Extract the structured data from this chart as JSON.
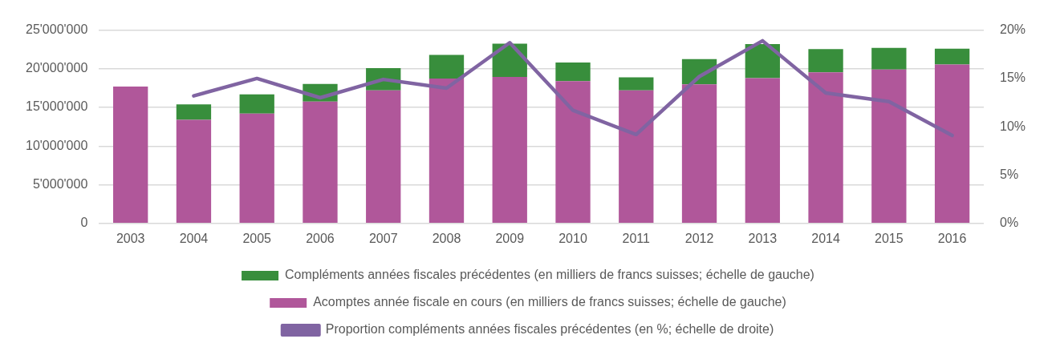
{
  "chart_data": {
    "type": "bar",
    "stacked": true,
    "categories": [
      "2003",
      "2004",
      "2005",
      "2006",
      "2007",
      "2008",
      "2009",
      "2010",
      "2011",
      "2012",
      "2013",
      "2014",
      "2015",
      "2016"
    ],
    "series": [
      {
        "name": "Acomptes année fiscale en cours (en milliers de francs suisses; échelle de gauche)",
        "color": "#b0579a",
        "values": [
          17700000,
          13400000,
          14200000,
          15750000,
          17200000,
          18750000,
          18950000,
          18400000,
          17200000,
          18000000,
          18800000,
          19550000,
          19900000,
          20550000
        ]
      },
      {
        "name": "Compléments années fiscales précédentes (en milliers de francs suisses; échelle de gauche)",
        "color": "#388e3c",
        "values": [
          0,
          2000000,
          2500000,
          2300000,
          2900000,
          3050000,
          4300000,
          2400000,
          1700000,
          3250000,
          4400000,
          3000000,
          2800000,
          2050000
        ]
      },
      {
        "name": "Proportion compléments années fiscales précédentes (en %; échelle de droite)",
        "type": "line",
        "axis": "y2",
        "color": "#8064a2",
        "values": [
          null,
          13.2,
          15.0,
          13.0,
          14.9,
          14.0,
          18.7,
          11.7,
          9.2,
          15.2,
          18.9,
          13.5,
          12.6,
          9.1
        ]
      }
    ],
    "ylim": [
      0,
      25000000
    ],
    "yticks": [
      {
        "value": 0,
        "label": "0"
      },
      {
        "value": 5000000,
        "label": "5'000'000"
      },
      {
        "value": 10000000,
        "label": "10'000'000"
      },
      {
        "value": 15000000,
        "label": "15'000'000"
      },
      {
        "value": 20000000,
        "label": "20'000'000"
      },
      {
        "value": 25000000,
        "label": "25'000'000"
      }
    ],
    "y2lim": [
      0,
      20
    ],
    "y2ticks": [
      {
        "value": 0,
        "label": "0%"
      },
      {
        "value": 5,
        "label": "5%"
      },
      {
        "value": 10,
        "label": "10%"
      },
      {
        "value": 15,
        "label": "15%"
      },
      {
        "value": 20,
        "label": "20%"
      }
    ],
    "grid": "y",
    "legend": "bottom",
    "marker": "none",
    "line_style": "solid"
  }
}
